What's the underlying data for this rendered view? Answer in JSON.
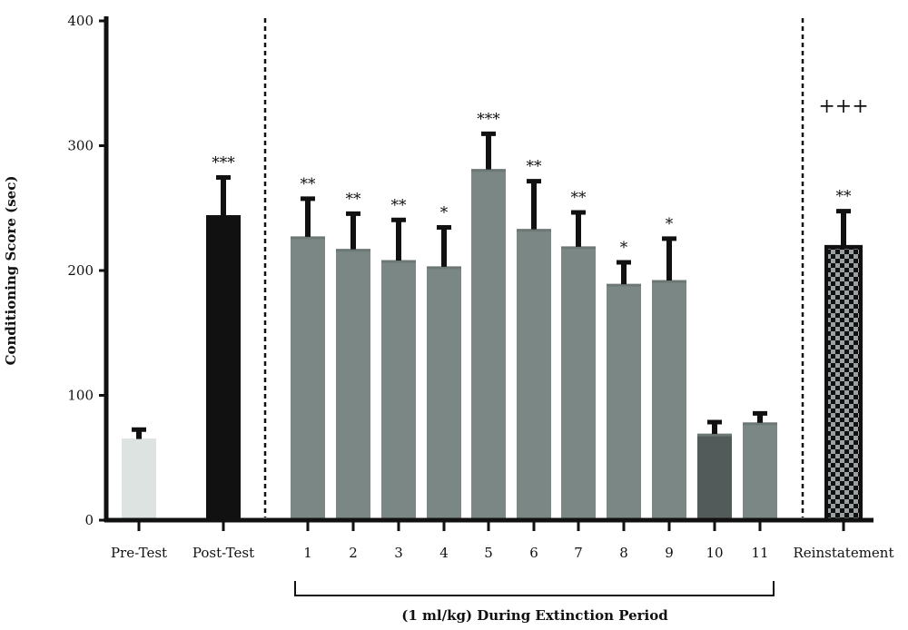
{
  "chart_data": {
    "type": "bar",
    "ylabel": "Conditioning Score (sec)",
    "xlabel": "(1 ml/kg) During Extinction Period",
    "ylim": [
      0,
      400
    ],
    "yticks": [
      0,
      100,
      200,
      300,
      400
    ],
    "grid": false,
    "categories": [
      "Pre-Test",
      "Post-Test",
      "1",
      "2",
      "3",
      "4",
      "5",
      "6",
      "7",
      "8",
      "9",
      "10",
      "11",
      "Reinstatement"
    ],
    "values": [
      65,
      244,
      227,
      217,
      208,
      203,
      281,
      233,
      219,
      189,
      192,
      69,
      78,
      219
    ],
    "errors": [
      9,
      32,
      32,
      30,
      34,
      33,
      30,
      40,
      29,
      19,
      35,
      11,
      9,
      30
    ],
    "significance": [
      "",
      "***",
      "**",
      "**",
      "**",
      "*",
      "***",
      "**",
      "**",
      "*",
      "*",
      "",
      "",
      "**"
    ],
    "reinstatement_marker": "+++",
    "colors": {
      "pre_test": "#dde3e1",
      "post_test": "#111111",
      "extinction": "#7b8784",
      "extinction_day10": "#525b5a",
      "reinstatement_dark": "#111111",
      "reinstatement_light": "#9aa2a3",
      "axis": "#111111"
    }
  }
}
